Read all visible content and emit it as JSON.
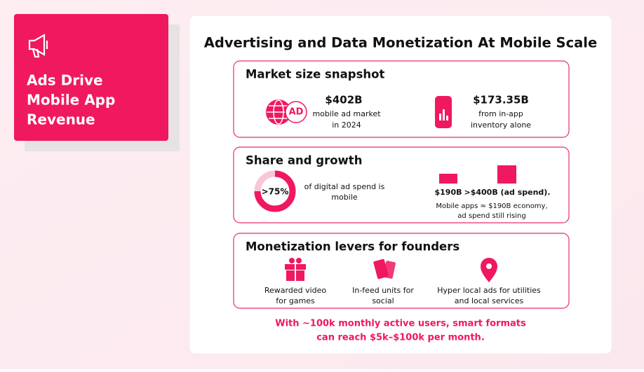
{
  "sidebar": {
    "title_lines": [
      "Ads Drive",
      "Mobile App",
      "Revenue"
    ]
  },
  "header": {
    "title": "Advertising and Data Monetization At Mobile Scale"
  },
  "sections": [
    {
      "title": "Market size snapshot",
      "stats": [
        {
          "value": "$402B",
          "icon_text": "AD",
          "label_lines": [
            "mobile ad market",
            "in 2024"
          ]
        },
        {
          "value": "$173.35B",
          "label_lines": [
            "from in-app",
            "inventory alone"
          ]
        }
      ]
    },
    {
      "title": "Share and growth",
      "donut_label": ">75%",
      "donut_text": [
        "of digital ad spend is",
        "mobile"
      ],
      "bars": [
        {
          "label": "$190B"
        },
        {
          "label": ">$400B (ad spend)."
        }
      ],
      "note_lines": [
        "Mobile apps ≈ $190B economy,",
        "ad spend still rising"
      ]
    },
    {
      "title": "Monetization levers for founders",
      "levers": [
        {
          "lines": [
            "Rewarded video",
            "for games"
          ]
        },
        {
          "lines": [
            "In-feed units for",
            "social"
          ]
        },
        {
          "lines": [
            "Hyper local ads for utilities",
            "and local services"
          ]
        }
      ]
    }
  ],
  "footer": {
    "lines": [
      "With ~100k monthly active users, smart formats",
      "can reach $5k–$100k per month."
    ]
  }
}
